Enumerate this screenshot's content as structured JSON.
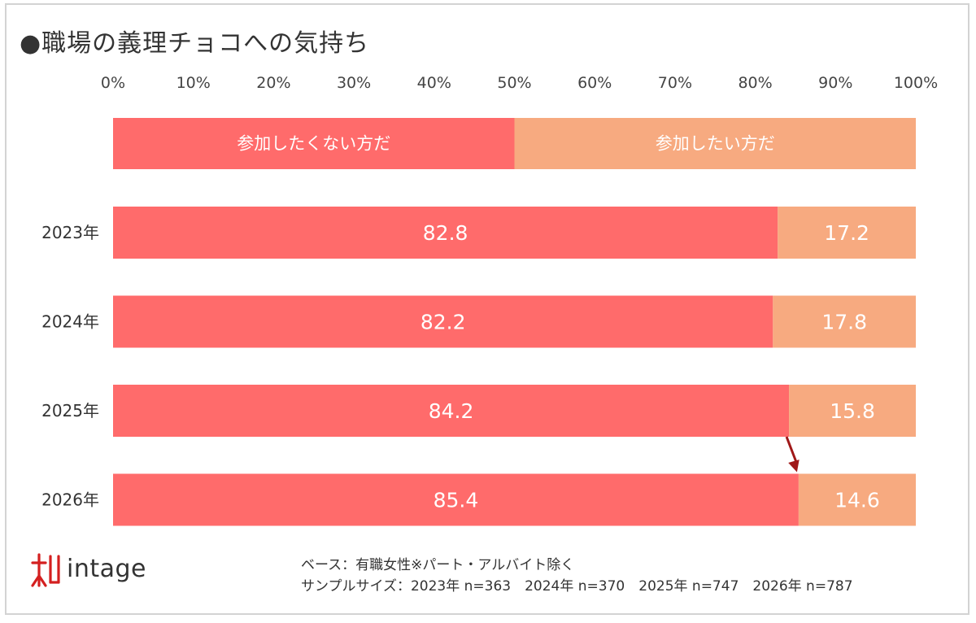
{
  "chart_data": {
    "type": "bar",
    "stacked": true,
    "orientation": "horizontal",
    "title": "●職場の義理チョコへの気持ち",
    "x_ticks": [
      "0%",
      "10%",
      "20%",
      "30%",
      "40%",
      "50%",
      "60%",
      "70%",
      "80%",
      "90%",
      "100%"
    ],
    "xlim": [
      0,
      100
    ],
    "legend": {
      "placement": "top",
      "items": [
        {
          "label": "参加したくない方だ",
          "color": "#ff6b6b"
        },
        {
          "label": "参加したい方だ",
          "color": "#f7aa80"
        }
      ]
    },
    "categories": [
      "2023年",
      "2024年",
      "2025年",
      "2026年"
    ],
    "series": [
      {
        "name": "参加したくない方だ",
        "color": "#ff6b6b",
        "values": [
          82.8,
          82.2,
          84.2,
          85.4
        ],
        "labels": [
          "82.8",
          "82.2",
          "84.2",
          "85.4"
        ]
      },
      {
        "name": "参加したい方だ",
        "color": "#f7aa80",
        "values": [
          17.2,
          17.8,
          15.8,
          14.6
        ],
        "labels": [
          "17.2",
          "17.8",
          "15.8",
          "14.6"
        ]
      }
    ],
    "annotation": {
      "type": "arrow",
      "from_category": "2025年",
      "to_category": "2026年",
      "color": "#a01818"
    }
  },
  "footer": {
    "base_note": "ベース：有職女性※パート・アルバイト除く",
    "sample_note": "サンプルサイズ：2023年 n=363　2024年 n=370　2025年 n=747　2026年 n=787"
  },
  "logo": {
    "text": "intage",
    "color": "#d42020"
  }
}
